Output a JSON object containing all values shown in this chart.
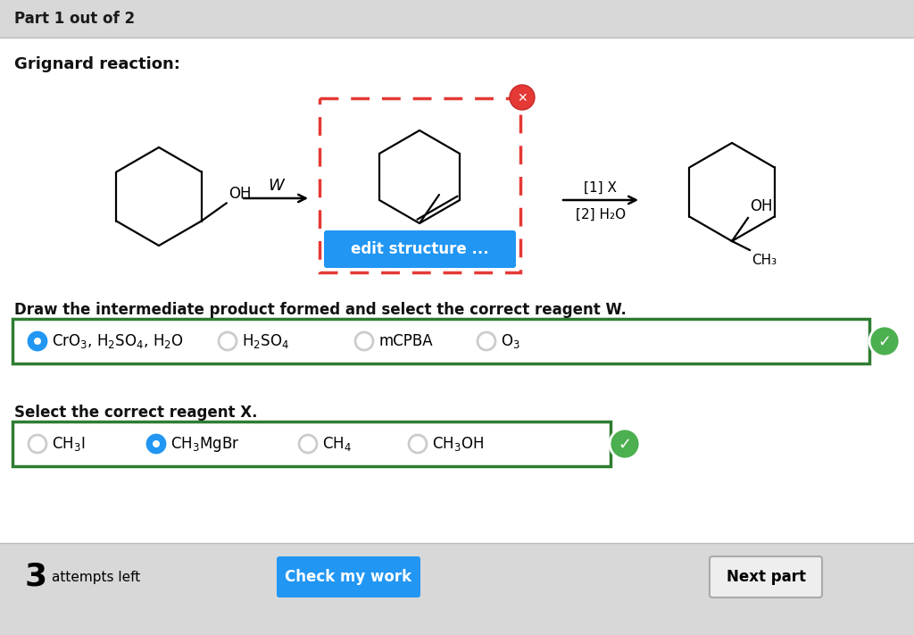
{
  "bg_color": "#ffffff",
  "header_bg": "#d8d8d8",
  "header_text": "Part 1 out of 2",
  "title_text": "Grignard reaction:",
  "question1_text": "Draw the intermediate product formed and select the correct reagent W.",
  "question2_text": "Select the correct reagent X.",
  "footer_bg": "#d8d8d8",
  "attempts_text": "3",
  "attempts_label": "attempts left",
  "check_btn_text": "Check my work",
  "next_btn_text": "Next part",
  "check_btn_color": "#2196f3",
  "reagent1_options": [
    "CrO$_3$, H$_2$SO$_4$, H$_2$O",
    "H$_2$SO$_4$",
    "mCPBA",
    "O$_3$"
  ],
  "reagent1_selected": 0,
  "reagent2_options": [
    "CH$_3$I",
    "CH$_3$MgBr",
    "CH$_4$",
    "CH$_3$OH"
  ],
  "reagent2_selected": 1,
  "green_check_color": "#4caf50",
  "selected_radio_color": "#2196f3",
  "unselected_radio_color": "#cccccc",
  "edit_btn_color": "#2196f3",
  "edit_btn_text": "edit structure ...",
  "dashed_box_color_red": "#e53935",
  "green_box_color": "#2e7d32",
  "arrow_label_w": "W"
}
